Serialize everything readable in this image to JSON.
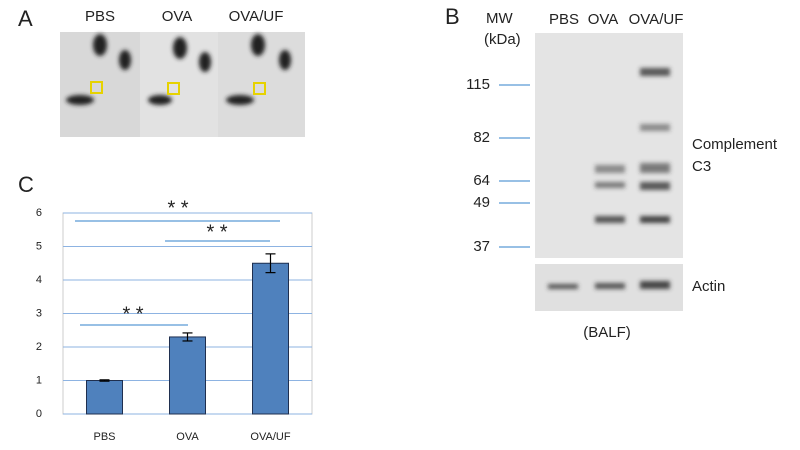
{
  "panels": {
    "a": {
      "label": "A",
      "lanes": [
        "PBS",
        "OVA",
        "OVA/UF"
      ]
    },
    "b": {
      "label": "B",
      "mw_header": "MW",
      "mw_unit": "(kDa)",
      "lanes": [
        "PBS",
        "OVA",
        "OVA/UF"
      ],
      "markers": [
        115,
        82,
        64,
        49,
        37
      ],
      "target": [
        "Complement",
        "C3"
      ],
      "control": "Actin",
      "sample": "(BALF)"
    },
    "c": {
      "label": "C"
    }
  },
  "chart_data": {
    "type": "bar",
    "categories": [
      "PBS",
      "OVA",
      "OVA/UF"
    ],
    "values": [
      1,
      2.3,
      4.5
    ],
    "errors": [
      0.02,
      0.12,
      0.28
    ],
    "color": "#4f81bd",
    "ylim": [
      0,
      6
    ],
    "yticks": [
      0,
      1,
      2,
      3,
      4,
      5,
      6
    ],
    "grid": true,
    "annotations": [
      "* *",
      "* *",
      "* *"
    ]
  }
}
